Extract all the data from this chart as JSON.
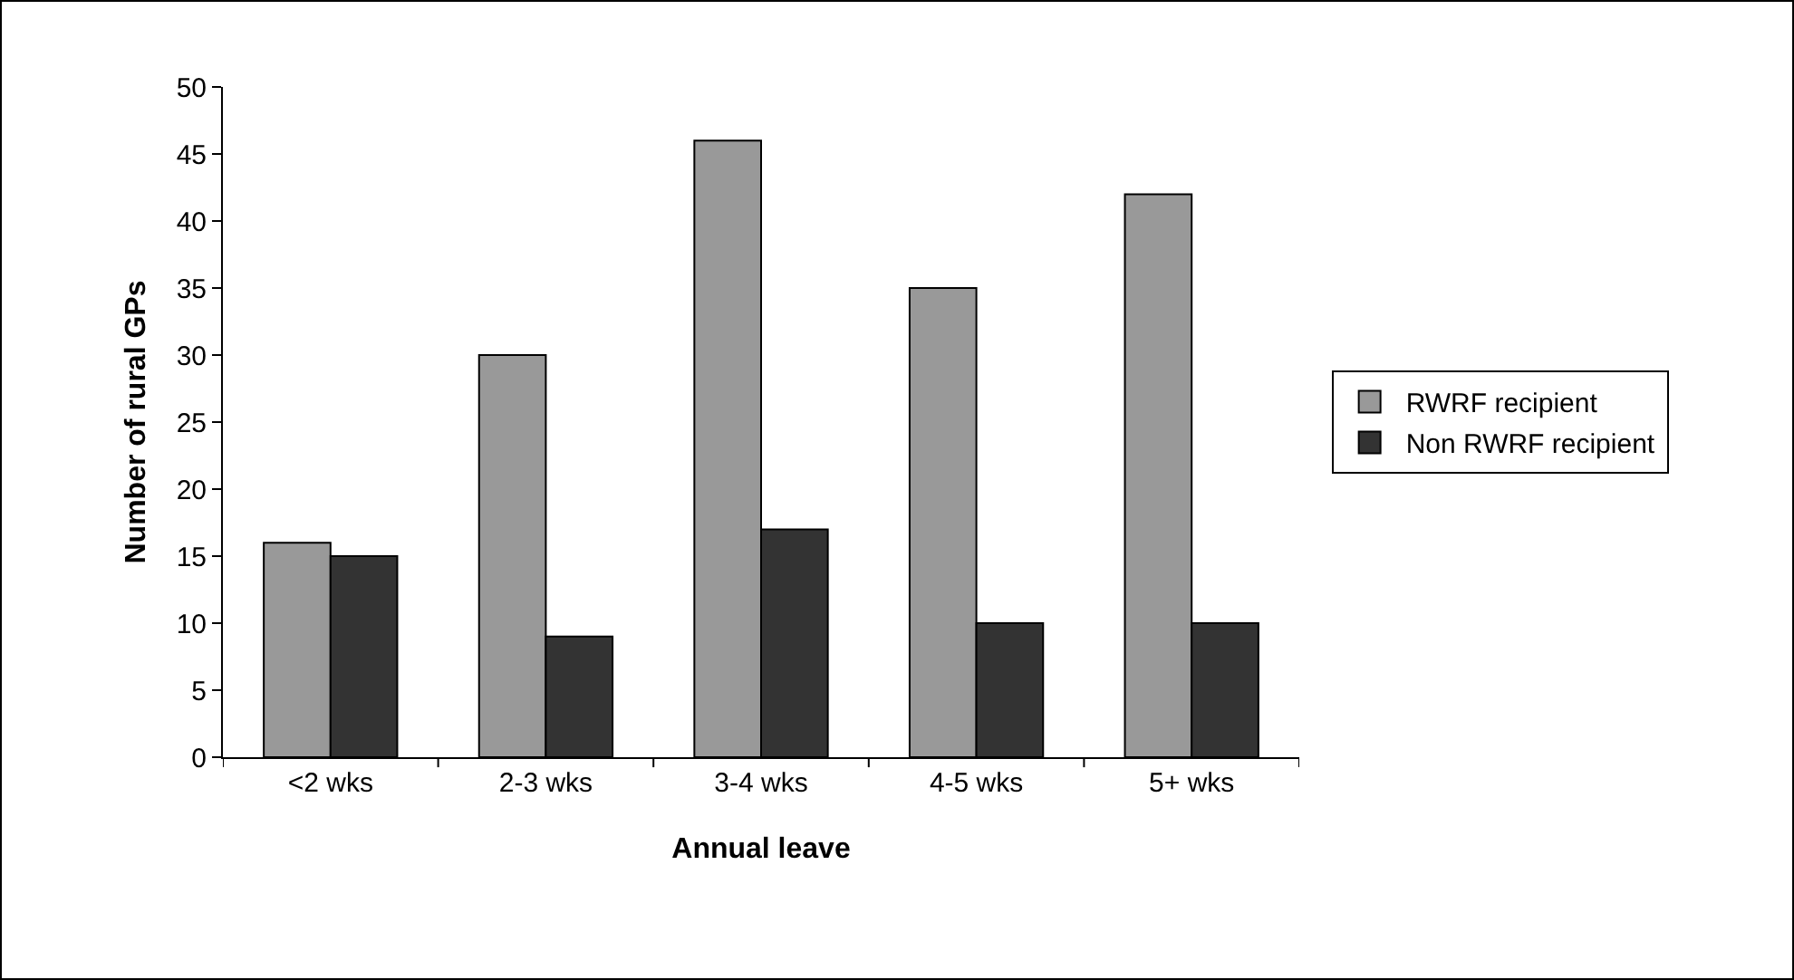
{
  "chart_data": {
    "type": "bar",
    "xlabel": "Annual leave",
    "ylabel": "Number of rural GPs",
    "categories": [
      "<2 wks",
      "2-3 wks",
      "3-4 wks",
      "4-5 wks",
      "5+ wks"
    ],
    "series": [
      {
        "name": "RWRF recipient",
        "color": "#999999",
        "values": [
          16,
          30,
          46,
          35,
          42
        ]
      },
      {
        "name": "Non RWRF recipient",
        "color": "#333333",
        "values": [
          15,
          9,
          17,
          10,
          10
        ]
      }
    ],
    "ylim": [
      0,
      50
    ],
    "yticks": [
      0,
      5,
      10,
      15,
      20,
      25,
      30,
      35,
      40,
      45,
      50
    ],
    "grid": false,
    "legend": "right"
  }
}
